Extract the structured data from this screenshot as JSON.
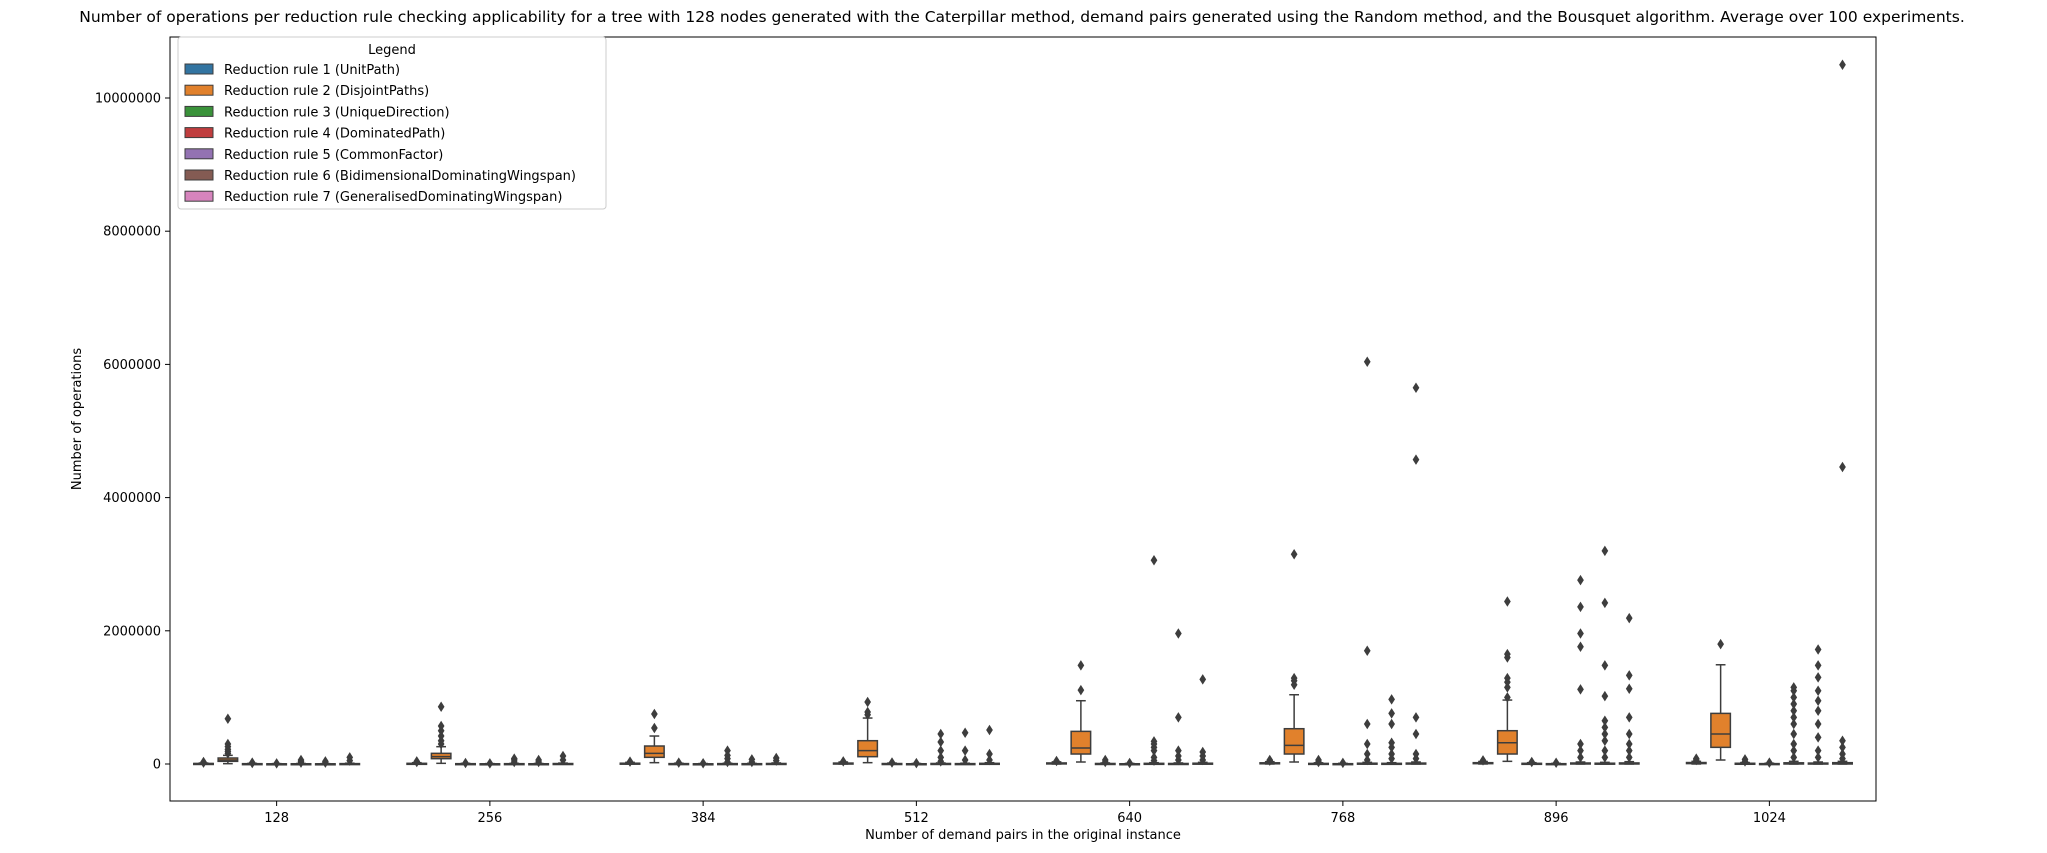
{
  "chart_data": {
    "type": "box",
    "title": "Number of operations per reduction rule checking applicability for a tree with 128 nodes generated with the Caterpillar method, demand pairs generated using the Random method, and the Bousquet algorithm. Average over 100 experiments.",
    "xlabel": "Number of demand pairs in the original instance",
    "ylabel": "Number of operations",
    "ylim": [
      -500000,
      10900000
    ],
    "yticks": [
      0,
      2000000,
      4000000,
      6000000,
      8000000,
      10000000
    ],
    "ytick_labels": [
      "0",
      "2000000",
      "4000000",
      "6000000",
      "8000000",
      "10000000"
    ],
    "categories": [
      "128",
      "256",
      "384",
      "512",
      "640",
      "768",
      "896",
      "1024"
    ],
    "legend": {
      "title": "Legend",
      "position": "top-left",
      "entries": [
        {
          "label": "Reduction rule 1 (UnitPath)",
          "color": "#3274a1"
        },
        {
          "label": "Reduction rule 2 (DisjointPaths)",
          "color": "#e1812c"
        },
        {
          "label": "Reduction rule 3 (UniqueDirection)",
          "color": "#3a923a"
        },
        {
          "label": "Reduction rule 4 (DominatedPath)",
          "color": "#c03d3e"
        },
        {
          "label": "Reduction rule 5 (CommonFactor)",
          "color": "#9372b2"
        },
        {
          "label": "Reduction rule 6 (BidimensionalDominatingWingspan)",
          "color": "#845b53"
        },
        {
          "label": "Reduction rule 7 (GeneralisedDominatingWingspan)",
          "color": "#d684bd"
        }
      ]
    },
    "series": [
      {
        "name": "Reduction rule 1 (UnitPath)",
        "color": "#3274a1",
        "boxes": [
          {
            "q1": 2000,
            "median": 5000,
            "q3": 8000,
            "whisker_low": 0,
            "whisker_high": 15000,
            "outliers": [
              20000,
              30000
            ]
          },
          {
            "q1": 3000,
            "median": 6000,
            "q3": 10000,
            "whisker_low": 0,
            "whisker_high": 20000,
            "outliers": [
              30000,
              40000
            ]
          },
          {
            "q1": 3000,
            "median": 7000,
            "q3": 12000,
            "whisker_low": 0,
            "whisker_high": 25000,
            "outliers": [
              35000
            ]
          },
          {
            "q1": 4000,
            "median": 8000,
            "q3": 14000,
            "whisker_low": 0,
            "whisker_high": 30000,
            "outliers": [
              40000
            ]
          },
          {
            "q1": 4000,
            "median": 9000,
            "q3": 16000,
            "whisker_low": 0,
            "whisker_high": 32000,
            "outliers": [
              45000
            ]
          },
          {
            "q1": 5000,
            "median": 10000,
            "q3": 18000,
            "whisker_low": 0,
            "whisker_high": 35000,
            "outliers": [
              50000,
              60000
            ]
          },
          {
            "q1": 5000,
            "median": 11000,
            "q3": 20000,
            "whisker_low": 0,
            "whisker_high": 38000,
            "outliers": [
              55000
            ]
          },
          {
            "q1": 6000,
            "median": 12000,
            "q3": 22000,
            "whisker_low": 0,
            "whisker_high": 40000,
            "outliers": [
              60000,
              80000
            ]
          }
        ]
      },
      {
        "name": "Reduction rule 2 (DisjointPaths)",
        "color": "#e1812c",
        "boxes": [
          {
            "q1": 40000,
            "median": 60000,
            "q3": 90000,
            "whisker_low": 5000,
            "whisker_high": 130000,
            "outliers": [
              160000,
              190000,
              220000,
              260000,
              300000,
              680000
            ]
          },
          {
            "q1": 80000,
            "median": 110000,
            "q3": 160000,
            "whisker_low": 10000,
            "whisker_high": 260000,
            "outliers": [
              300000,
              350000,
              420000,
              500000,
              570000,
              860000
            ]
          },
          {
            "q1": 100000,
            "median": 160000,
            "q3": 270000,
            "whisker_low": 20000,
            "whisker_high": 420000,
            "outliers": [
              540000,
              750000
            ]
          },
          {
            "q1": 110000,
            "median": 200000,
            "q3": 350000,
            "whisker_low": 20000,
            "whisker_high": 690000,
            "outliers": [
              740000,
              780000,
              930000
            ]
          },
          {
            "q1": 150000,
            "median": 240000,
            "q3": 490000,
            "whisker_low": 30000,
            "whisker_high": 950000,
            "outliers": [
              1110000,
              1480000
            ]
          },
          {
            "q1": 150000,
            "median": 280000,
            "q3": 530000,
            "whisker_low": 30000,
            "whisker_high": 1040000,
            "outliers": [
              1190000,
              1250000,
              1290000,
              3150000
            ]
          },
          {
            "q1": 150000,
            "median": 320000,
            "q3": 500000,
            "whisker_low": 40000,
            "whisker_high": 960000,
            "outliers": [
              1000000,
              1150000,
              1230000,
              1290000,
              1600000,
              1650000,
              2440000
            ]
          },
          {
            "q1": 250000,
            "median": 450000,
            "q3": 760000,
            "whisker_low": 60000,
            "whisker_high": 1490000,
            "outliers": [
              1800000
            ]
          }
        ]
      },
      {
        "name": "Reduction rule 3 (UniqueDirection)",
        "color": "#3a923a",
        "boxes": [
          {
            "q1": 0,
            "median": 2000,
            "q3": 5000,
            "whisker_low": 0,
            "whisker_high": 10000,
            "outliers": [
              15000,
              20000
            ]
          },
          {
            "q1": 0,
            "median": 2000,
            "q3": 5000,
            "whisker_low": 0,
            "whisker_high": 10000,
            "outliers": [
              15000
            ]
          },
          {
            "q1": 0,
            "median": 3000,
            "q3": 6000,
            "whisker_low": 0,
            "whisker_high": 12000,
            "outliers": [
              20000
            ]
          },
          {
            "q1": 0,
            "median": 3000,
            "q3": 7000,
            "whisker_low": 0,
            "whisker_high": 14000,
            "outliers": [
              22000
            ]
          },
          {
            "q1": 0,
            "median": 4000,
            "q3": 8000,
            "whisker_low": 0,
            "whisker_high": 16000,
            "outliers": [
              30000,
              60000
            ]
          },
          {
            "q1": 0,
            "median": 4000,
            "q3": 9000,
            "whisker_low": 0,
            "whisker_high": 18000,
            "outliers": [
              30000,
              60000
            ]
          },
          {
            "q1": 0,
            "median": 5000,
            "q3": 10000,
            "whisker_low": 0,
            "whisker_high": 20000,
            "outliers": [
              30000
            ]
          },
          {
            "q1": 0,
            "median": 5000,
            "q3": 11000,
            "whisker_low": 0,
            "whisker_high": 22000,
            "outliers": [
              40000,
              70000
            ]
          }
        ]
      },
      {
        "name": "Reduction rule 4 (DominatedPath)",
        "color": "#c03d3e",
        "boxes": [
          {
            "q1": 0,
            "median": 1000,
            "q3": 3000,
            "whisker_low": 0,
            "whisker_high": 6000,
            "outliers": [
              10000
            ]
          },
          {
            "q1": 0,
            "median": 1000,
            "q3": 3000,
            "whisker_low": 0,
            "whisker_high": 6000,
            "outliers": [
              10000
            ]
          },
          {
            "q1": 0,
            "median": 1000,
            "q3": 3000,
            "whisker_low": 0,
            "whisker_high": 7000,
            "outliers": [
              12000
            ]
          },
          {
            "q1": 0,
            "median": 1000,
            "q3": 4000,
            "whisker_low": 0,
            "whisker_high": 8000,
            "outliers": [
              14000
            ]
          },
          {
            "q1": 0,
            "median": 2000,
            "q3": 4000,
            "whisker_low": 0,
            "whisker_high": 9000,
            "outliers": [
              15000
            ]
          },
          {
            "q1": 0,
            "median": 2000,
            "q3": 5000,
            "whisker_low": 0,
            "whisker_high": 10000,
            "outliers": [
              16000
            ]
          },
          {
            "q1": 0,
            "median": 2000,
            "q3": 5000,
            "whisker_low": 0,
            "whisker_high": 10000,
            "outliers": [
              18000
            ]
          },
          {
            "q1": 0,
            "median": 2000,
            "q3": 6000,
            "whisker_low": 0,
            "whisker_high": 12000,
            "outliers": [
              20000
            ]
          }
        ]
      },
      {
        "name": "Reduction rule 5 (CommonFactor)",
        "color": "#9372b2",
        "boxes": [
          {
            "q1": 0,
            "median": 1000,
            "q3": 4000,
            "whisker_low": 0,
            "whisker_high": 8000,
            "outliers": [
              20000,
              40000,
              60000
            ]
          },
          {
            "q1": 0,
            "median": 2000,
            "q3": 5000,
            "whisker_low": 0,
            "whisker_high": 10000,
            "outliers": [
              30000,
              60000,
              80000
            ]
          },
          {
            "q1": 0,
            "median": 2000,
            "q3": 6000,
            "whisker_low": 0,
            "whisker_high": 12000,
            "outliers": [
              30000,
              80000,
              130000,
              200000
            ]
          },
          {
            "q1": 0,
            "median": 3000,
            "q3": 8000,
            "whisker_low": 0,
            "whisker_high": 16000,
            "outliers": [
              40000,
              100000,
              200000,
              330000,
              450000
            ]
          },
          {
            "q1": 0,
            "median": 3000,
            "q3": 10000,
            "whisker_low": 0,
            "whisker_high": 20000,
            "outliers": [
              50000,
              100000,
              200000,
              250000,
              300000,
              340000,
              3060000
            ]
          },
          {
            "q1": 0,
            "median": 4000,
            "q3": 12000,
            "whisker_low": 0,
            "whisker_high": 25000,
            "outliers": [
              60000,
              150000,
              300000,
              600000,
              1700000,
              6040000
            ]
          },
          {
            "q1": 0,
            "median": 5000,
            "q3": 15000,
            "whisker_low": 0,
            "whisker_high": 30000,
            "outliers": [
              100000,
              200000,
              300000,
              1120000,
              1760000,
              1960000,
              2360000,
              2760000
            ]
          },
          {
            "q1": 0,
            "median": 6000,
            "q3": 18000,
            "whisker_low": 0,
            "whisker_high": 40000,
            "outliers": [
              100000,
              200000,
              300000,
              450000,
              600000,
              700000,
              800000,
              900000,
              1000000,
              1100000,
              1150000
            ]
          }
        ]
      },
      {
        "name": "Reduction rule 6 (BidimensionalDominatingWingspan)",
        "color": "#845b53",
        "boxes": [
          {
            "q1": 0,
            "median": 1000,
            "q3": 3000,
            "whisker_low": 0,
            "whisker_high": 6000,
            "outliers": [
              20000,
              40000
            ]
          },
          {
            "q1": 0,
            "median": 1000,
            "q3": 4000,
            "whisker_low": 0,
            "whisker_high": 8000,
            "outliers": [
              30000,
              60000
            ]
          },
          {
            "q1": 0,
            "median": 2000,
            "q3": 5000,
            "whisker_low": 0,
            "whisker_high": 10000,
            "outliers": [
              30000,
              70000
            ]
          },
          {
            "q1": 0,
            "median": 2000,
            "q3": 6000,
            "whisker_low": 0,
            "whisker_high": 12000,
            "outliers": [
              60000,
              200000,
              470000
            ]
          },
          {
            "q1": 0,
            "median": 3000,
            "q3": 8000,
            "whisker_low": 0,
            "whisker_high": 16000,
            "outliers": [
              60000,
              120000,
              200000,
              700000,
              1960000
            ]
          },
          {
            "q1": 0,
            "median": 4000,
            "q3": 10000,
            "whisker_low": 0,
            "whisker_high": 20000,
            "outliers": [
              80000,
              150000,
              250000,
              320000,
              600000,
              760000,
              970000
            ]
          },
          {
            "q1": 0,
            "median": 4000,
            "q3": 12000,
            "whisker_low": 0,
            "whisker_high": 25000,
            "outliers": [
              100000,
              200000,
              350000,
              450000,
              550000,
              650000,
              1020000,
              1480000,
              2420000,
              3200000
            ]
          },
          {
            "q1": 0,
            "median": 5000,
            "q3": 14000,
            "whisker_low": 0,
            "whisker_high": 30000,
            "outliers": [
              100000,
              200000,
              400000,
              600000,
              800000,
              950000,
              1100000,
              1300000,
              1480000,
              1720000
            ]
          }
        ]
      },
      {
        "name": "Reduction rule 7 (GeneralisedDominatingWingspan)",
        "color": "#d684bd",
        "boxes": [
          {
            "q1": 0,
            "median": 2000,
            "q3": 6000,
            "whisker_low": 0,
            "whisker_high": 12000,
            "outliers": [
              50000,
              100000
            ]
          },
          {
            "q1": 0,
            "median": 2000,
            "q3": 7000,
            "whisker_low": 0,
            "whisker_high": 14000,
            "outliers": [
              60000,
              120000
            ]
          },
          {
            "q1": 0,
            "median": 3000,
            "q3": 8000,
            "whisker_low": 0,
            "whisker_high": 16000,
            "outliers": [
              50000,
              90000
            ]
          },
          {
            "q1": 0,
            "median": 3000,
            "q3": 10000,
            "whisker_low": 0,
            "whisker_high": 20000,
            "outliers": [
              60000,
              150000,
              510000
            ]
          },
          {
            "q1": 0,
            "median": 4000,
            "q3": 12000,
            "whisker_low": 0,
            "whisker_high": 25000,
            "outliers": [
              60000,
              120000,
              180000,
              1270000
            ]
          },
          {
            "q1": 0,
            "median": 5000,
            "q3": 14000,
            "whisker_low": 0,
            "whisker_high": 30000,
            "outliers": [
              80000,
              150000,
              450000,
              700000,
              4570000,
              5650000
            ]
          },
          {
            "q1": 0,
            "median": 6000,
            "q3": 16000,
            "whisker_low": 0,
            "whisker_high": 35000,
            "outliers": [
              100000,
              200000,
              300000,
              450000,
              700000,
              1130000,
              1330000,
              2190000
            ]
          },
          {
            "q1": 0,
            "median": 8000,
            "q3": 20000,
            "whisker_low": 0,
            "whisker_high": 40000,
            "outliers": [
              80000,
              150000,
              250000,
              350000,
              4460000,
              10500000
            ]
          }
        ]
      }
    ]
  }
}
